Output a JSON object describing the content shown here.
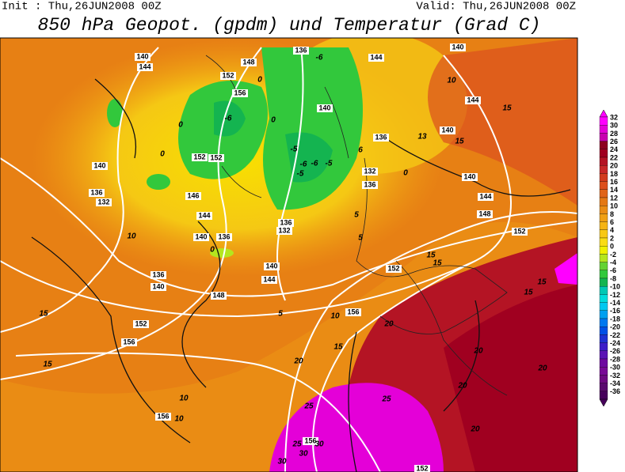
{
  "header": {
    "init": "Init : Thu,26JUN2008 00Z",
    "valid": "Valid: Thu,26JUN2008 00Z",
    "title": "850 hPa Geopot. (gpdm) und Temperatur (Grad C)"
  },
  "colorbar": {
    "levels": [
      32,
      30,
      28,
      26,
      24,
      22,
      20,
      18,
      16,
      14,
      12,
      10,
      8,
      6,
      4,
      2,
      0,
      -2,
      -4,
      -6,
      -8,
      -10,
      -12,
      -14,
      -16,
      -18,
      -20,
      -22,
      -24,
      -26,
      -28,
      -30,
      -32,
      -34,
      -36
    ],
    "colors": [
      "#ff00ff",
      "#e400d8",
      "#c800b0",
      "#8c0020",
      "#a00020",
      "#b41424",
      "#c82828",
      "#d23c1e",
      "#dc501e",
      "#e06418",
      "#e47814",
      "#ea8c14",
      "#f0a014",
      "#f5b414",
      "#f8c814",
      "#fadc14",
      "#f0f000",
      "#b4e61e",
      "#64d232",
      "#32c83c",
      "#14b450",
      "#00c8b4",
      "#00dcdc",
      "#00c8f0",
      "#00a0f0",
      "#0078f0",
      "#0050e6",
      "#1e32d2",
      "#3c1ec8",
      "#5a14b4",
      "#6e0aa0",
      "#780a96",
      "#6e0a82",
      "#5a0a6e",
      "#46005a"
    ]
  },
  "geopotential_labels": [
    "140",
    "144",
    "148",
    "136",
    "144",
    "140",
    "152",
    "156",
    "144",
    "140",
    "140",
    "136",
    "152",
    "152",
    "140",
    "132",
    "140",
    "136",
    "132",
    "146",
    "136",
    "144",
    "148",
    "144",
    "136",
    "132",
    "140",
    "136",
    "152",
    "152",
    "140",
    "144",
    "136",
    "140",
    "148",
    "156",
    "152",
    "156",
    "156",
    "156",
    "152"
  ],
  "temperature_labels": [
    "-6",
    "0",
    "10",
    "15",
    "-6",
    "0",
    "0",
    "13",
    "15",
    "-5",
    "6",
    "0",
    "-6",
    "-6",
    "-5",
    "-5",
    "0",
    "5",
    "10",
    "0",
    "5",
    "15",
    "15",
    "15",
    "15",
    "5",
    "10",
    "20",
    "15",
    "15",
    "20",
    "15",
    "20",
    "20",
    "20",
    "10",
    "10",
    "25",
    "25",
    "20",
    "25",
    "30",
    "30",
    "30"
  ]
}
